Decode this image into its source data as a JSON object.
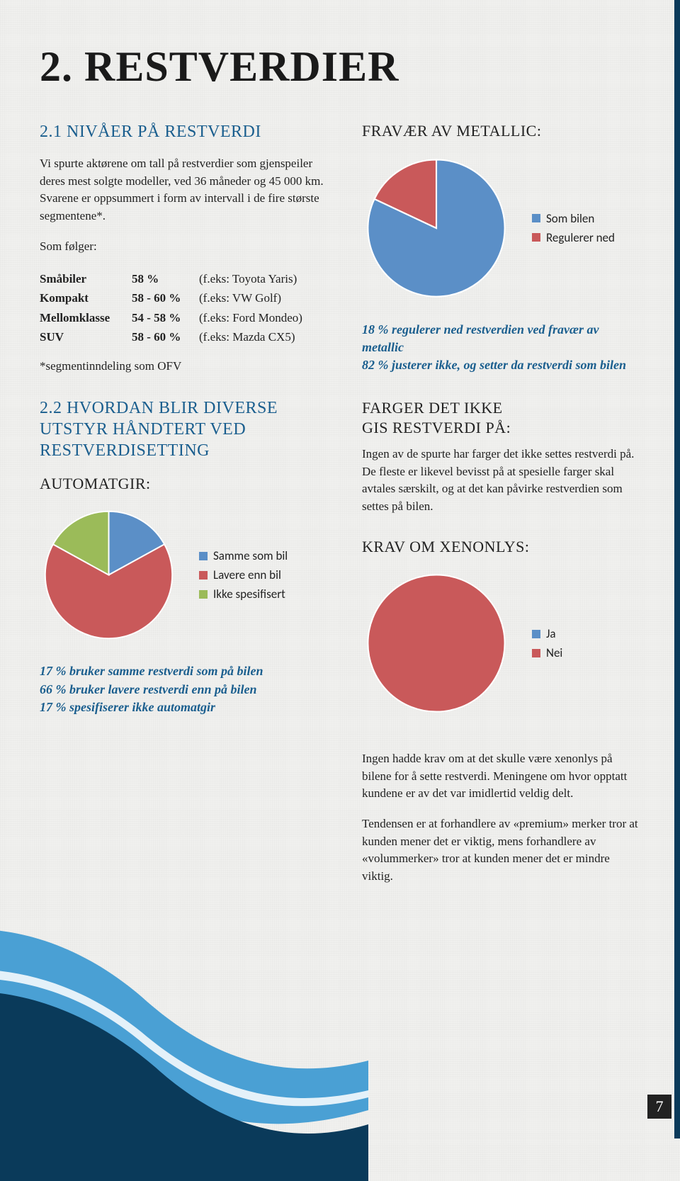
{
  "page": {
    "title": "2. RESTVERDIER",
    "number": "7"
  },
  "left": {
    "h_21": "2.1 NIVÅER PÅ RESTVERDI",
    "intro": "Vi spurte aktørene om tall på restverdier som gjenspeiler deres mest solgte modeller, ved 36 måneder og 45 000 km. Svarene er oppsummert i form av intervall i de fire største segmentene*.",
    "som_folger": "Som følger:",
    "segments": [
      {
        "name": "Småbiler",
        "pct": "58 %",
        "ex": "(f.eks: Toyota Yaris)"
      },
      {
        "name": "Kompakt",
        "pct": "58 - 60 %",
        "ex": "(f.eks: VW Golf)"
      },
      {
        "name": "Mellomklasse",
        "pct": "54 - 58 %",
        "ex": "(f.eks: Ford Mondeo)"
      },
      {
        "name": "SUV",
        "pct": "58 - 60 %",
        "ex": "(f.eks: Mazda CX5)"
      }
    ],
    "footnote": "*segmentinndeling som OFV",
    "h_22": "2.2 HVORDAN BLIR DIVERSE UTSTYR HÅNDTERT VED RESTVERDISETTING",
    "automatgir_label": "AUTOMATGIR:",
    "automatgir_chart": {
      "type": "pie",
      "slices": [
        {
          "label": "Samme som bil",
          "value": 17,
          "color": "#5b8fc7"
        },
        {
          "label": "Lavere enn bil",
          "value": 66,
          "color": "#c9595a"
        },
        {
          "label": "Ikke spesifisert",
          "value": 17,
          "color": "#9bbb59"
        }
      ],
      "start_angle_deg": -90,
      "border_color": "#ffffff"
    },
    "automatgir_callout": [
      "17 % bruker samme restverdi som på bilen",
      "66 % bruker lavere restverdi enn på bilen",
      "17 % spesifiserer ikke automatgir"
    ]
  },
  "right": {
    "metallic_label": "FRAVÆR AV METALLIC:",
    "metallic_chart": {
      "type": "pie",
      "slices": [
        {
          "label": "Som bilen",
          "value": 82,
          "color": "#5b8fc7"
        },
        {
          "label": "Regulerer ned",
          "value": 18,
          "color": "#c9595a"
        }
      ],
      "start_angle_deg": -90,
      "border_color": "#ffffff"
    },
    "metallic_callout": [
      "18 % regulerer ned restverdien ved fravær av metallic",
      "82 % justerer ikke, og setter da restverdi som bilen"
    ],
    "farger_heading": "FARGER DET IKKE\nGIS RESTVERDI PÅ:",
    "farger_body": "Ingen av de spurte har farger det ikke settes restverdi på. De fleste er likevel bevisst på at spesielle farger skal avtales særskilt, og at det kan påvirke restverdien som settes på bilen.",
    "xenon_label": "KRAV OM XENONLYS:",
    "xenon_chart": {
      "type": "pie",
      "slices": [
        {
          "label": "Ja",
          "value": 0,
          "color": "#5b8fc7"
        },
        {
          "label": "Nei",
          "value": 100,
          "color": "#c9595a"
        }
      ],
      "start_angle_deg": -90,
      "border_color": "#ffffff"
    },
    "xenon_body1": "Ingen hadde krav om at det skulle være xenonlys på bilene for å sette restverdi. Meningene om hvor opptatt kundene er av det var imidlertid veldig delt.",
    "xenon_body2": "Tendensen er at forhandlere av «premium» merker tror at kunden mener det er viktig, mens forhandlere av «volummerker» tror at kunden mener det er mindre viktig."
  },
  "colors": {
    "heading_blue": "#1a5e8e",
    "text": "#222222",
    "page_bg": "#f0f0ee",
    "wave_light": "#4aa0d4",
    "wave_dark": "#0a3a5a"
  }
}
